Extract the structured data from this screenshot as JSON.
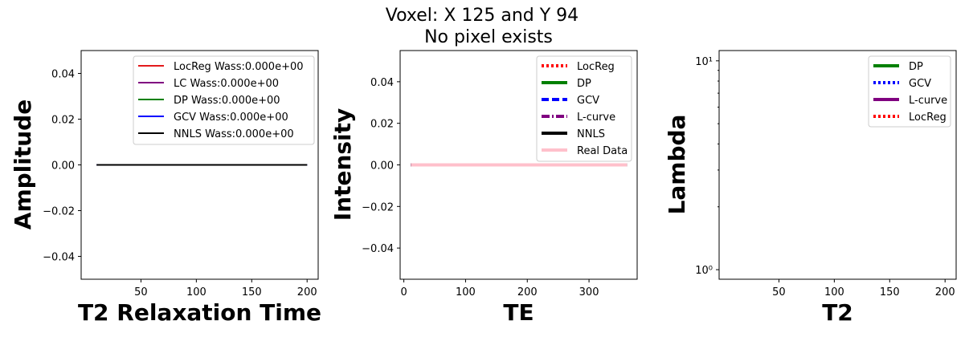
{
  "figure": {
    "title_line1": "Voxel: X 125 and Y 94",
    "title_line2": "No pixel exists"
  },
  "chart_data": [
    {
      "type": "line",
      "xlabel": "T2 Relaxation Time",
      "ylabel": "Amplitude",
      "xlim": [
        -4,
        210
      ],
      "ylim": [
        -0.05,
        0.05
      ],
      "xticks": [
        50,
        100,
        150,
        200
      ],
      "yticks": [
        -0.04,
        -0.02,
        0.0,
        0.02,
        0.04
      ],
      "ytick_labels": [
        "−0.04",
        "−0.02",
        "0.00",
        "0.02",
        "0.04"
      ],
      "legend": "top-right",
      "series": [
        {
          "name": "LocReg Wass:0.000e+00",
          "color": "#e31a1c",
          "style": "solid",
          "x": [
            10,
            200
          ],
          "y": [
            0,
            0
          ]
        },
        {
          "name": "LC Wass:0.000e+00",
          "color": "#800080",
          "style": "solid",
          "x": [
            10,
            200
          ],
          "y": [
            0,
            0
          ]
        },
        {
          "name": "DP Wass:0.000e+00",
          "color": "#008000",
          "style": "solid",
          "x": [
            10,
            200
          ],
          "y": [
            0,
            0
          ]
        },
        {
          "name": "GCV Wass:0.000e+00",
          "color": "#0000ff",
          "style": "solid",
          "x": [
            10,
            200
          ],
          "y": [
            0,
            0
          ]
        },
        {
          "name": "NNLS Wass:0.000e+00",
          "color": "#000000",
          "style": "solid",
          "x": [
            10,
            200
          ],
          "y": [
            0,
            0
          ]
        }
      ]
    },
    {
      "type": "line",
      "xlabel": "TE",
      "ylabel": "Intensity",
      "xlim": [
        -6,
        378
      ],
      "ylim": [
        -0.055,
        0.055
      ],
      "xticks": [
        0,
        100,
        200,
        300
      ],
      "yticks": [
        -0.04,
        -0.02,
        0.0,
        0.02,
        0.04
      ],
      "ytick_labels": [
        "−0.04",
        "−0.02",
        "0.00",
        "0.02",
        "0.04"
      ],
      "legend": "top-right",
      "series": [
        {
          "name": "LocReg",
          "color": "#ff0000",
          "style": "dotted",
          "x": [
            11.3,
            361.6
          ],
          "y": [
            0,
            0
          ]
        },
        {
          "name": "DP",
          "color": "#008000",
          "style": "solid",
          "x": [
            11.3,
            361.6
          ],
          "y": [
            0,
            0
          ]
        },
        {
          "name": "GCV",
          "color": "#0000ff",
          "style": "dashed",
          "x": [
            11.3,
            361.6
          ],
          "y": [
            0,
            0
          ]
        },
        {
          "name": "L-curve",
          "color": "#800080",
          "style": "dashdot",
          "x": [
            11.3,
            361.6
          ],
          "y": [
            0,
            0
          ]
        },
        {
          "name": "NNLS",
          "color": "#000000",
          "style": "solid",
          "x": [
            11.3,
            361.6
          ],
          "y": [
            0,
            0
          ]
        },
        {
          "name": "Real Data",
          "color": "#ffc0cb",
          "style": "solid",
          "x": [
            11.3,
            361.6
          ],
          "y": [
            0,
            0
          ]
        }
      ]
    },
    {
      "type": "line",
      "xlabel": "T2",
      "ylabel": "Lambda",
      "xlim": [
        -4,
        210
      ],
      "ylim": [
        0.9,
        11.2
      ],
      "yscale": "log",
      "xticks": [
        50,
        100,
        150,
        200
      ],
      "yticks": [
        1,
        10
      ],
      "ytick_labels": [
        "10⁰",
        "10¹"
      ],
      "legend": "top-right",
      "series": [
        {
          "name": "DP",
          "color": "#008000",
          "style": "solid",
          "x": [],
          "y": []
        },
        {
          "name": "GCV",
          "color": "#0000ff",
          "style": "dotted",
          "x": [],
          "y": []
        },
        {
          "name": "L-curve",
          "color": "#800080",
          "style": "solid",
          "x": [],
          "y": []
        },
        {
          "name": "LocReg",
          "color": "#ff0000",
          "style": "dotted",
          "x": [],
          "y": []
        }
      ]
    }
  ]
}
